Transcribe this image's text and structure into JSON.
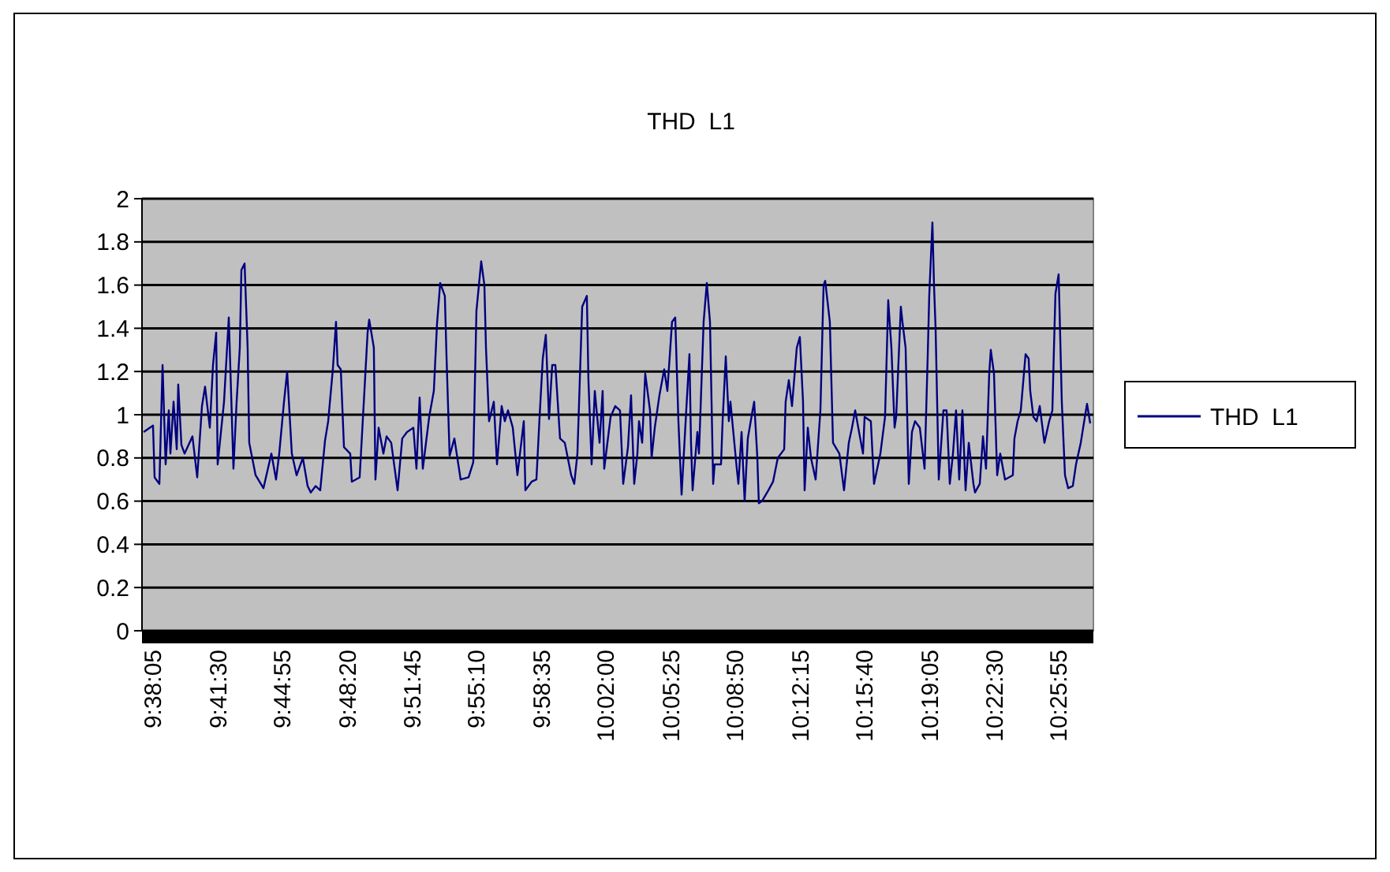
{
  "chart_data": {
    "type": "line",
    "title": "THD  L1",
    "legend": "right",
    "grid": "y",
    "xlim": [
      9.625,
      10.4625
    ],
    "xticks": [
      {
        "value": 9.634722,
        "label": "9:38:05"
      },
      {
        "value": 9.691667,
        "label": "9:41:30"
      },
      {
        "value": 9.748611,
        "label": "9:44:55"
      },
      {
        "value": 9.805556,
        "label": "9:48:20"
      },
      {
        "value": 9.8625,
        "label": "9:51:45"
      },
      {
        "value": 9.919444,
        "label": "9:55:10"
      },
      {
        "value": 9.976389,
        "label": "9:58:35"
      },
      {
        "value": 10.033333,
        "label": "10:02:00"
      },
      {
        "value": 10.090278,
        "label": "10:05:25"
      },
      {
        "value": 10.147222,
        "label": "10:08:50"
      },
      {
        "value": 10.204167,
        "label": "10:12:15"
      },
      {
        "value": 10.261111,
        "label": "10:15:40"
      },
      {
        "value": 10.318056,
        "label": "10:19:05"
      },
      {
        "value": 10.375,
        "label": "10:22:30"
      },
      {
        "value": 10.431944,
        "label": "10:25:55"
      }
    ],
    "ylim": [
      0,
      2
    ],
    "yticks": [
      0,
      0.2,
      0.4,
      0.6,
      0.8,
      1,
      1.2,
      1.4,
      1.6,
      1.8,
      2
    ],
    "series": [
      {
        "name": "THD  L1",
        "color": "#000080",
        "x": [
          9.6264,
          9.6347,
          9.6361,
          9.6403,
          9.6431,
          9.6458,
          9.6486,
          9.65,
          9.6528,
          9.6556,
          9.6569,
          9.6597,
          9.6625,
          9.6694,
          9.6736,
          9.6778,
          9.6805,
          9.6847,
          9.6875,
          9.6903,
          9.6916,
          9.6972,
          9.7014,
          9.7055,
          9.7083,
          9.7111,
          9.7125,
          9.7153,
          9.718,
          9.7194,
          9.725,
          9.7319,
          9.7389,
          9.743,
          9.7458,
          9.75,
          9.7528,
          9.7569,
          9.7611,
          9.7666,
          9.7708,
          9.7736,
          9.7778,
          9.7819,
          9.7861,
          9.7889,
          9.793,
          9.7958,
          9.7972,
          9.8,
          9.8028,
          9.8083,
          9.8097,
          9.8166,
          9.8208,
          9.8236,
          9.825,
          9.8291,
          9.8305,
          9.8333,
          9.8375,
          9.8403,
          9.8444,
          9.85,
          9.8541,
          9.8583,
          9.8639,
          9.8666,
          9.8694,
          9.8722,
          9.8778,
          9.8819,
          9.8847,
          9.8875,
          9.8916,
          9.893,
          9.8958,
          9.9,
          9.9055,
          9.9125,
          9.9166,
          9.9194,
          9.9236,
          9.9264,
          9.9278,
          9.9305,
          9.9347,
          9.9375,
          9.9416,
          9.9444,
          9.9472,
          9.9514,
          9.9555,
          9.9611,
          9.9625,
          9.968,
          9.9722,
          9.975,
          9.9778,
          9.9805,
          9.9833,
          9.9861,
          9.9889,
          9.993,
          9.9972,
          10.0028,
          10.0055,
          10.0083,
          10.0125,
          10.0166,
          10.018,
          10.0208,
          10.0236,
          10.0278,
          10.0305,
          10.0319,
          10.0375,
          10.0416,
          10.0458,
          10.0486,
          10.0528,
          10.0555,
          10.0583,
          10.0611,
          10.0625,
          10.0653,
          10.068,
          10.0722,
          10.0736,
          10.0764,
          10.0805,
          10.0847,
          10.0875,
          10.0916,
          10.0944,
          10.0972,
          10.1,
          10.1041,
          10.1069,
          10.1083,
          10.1097,
          10.1139,
          10.1153,
          10.1194,
          10.1222,
          10.125,
          10.1278,
          10.1291,
          10.1347,
          10.1361,
          10.1389,
          10.1416,
          10.143,
          10.1486,
          10.15,
          10.1528,
          10.1555,
          10.1583,
          10.1625,
          10.1639,
          10.1666,
          10.168,
          10.1708,
          10.1764,
          10.1805,
          10.1847,
          10.1903,
          10.1916,
          10.1944,
          10.1972,
          10.2014,
          10.2041,
          10.2069,
          10.2083,
          10.2111,
          10.2139,
          10.218,
          10.2222,
          10.225,
          10.2264,
          10.2305,
          10.2333,
          10.2389,
          10.243,
          10.2472,
          10.25,
          10.2528,
          10.2569,
          10.2597,
          10.2611,
          10.2666,
          10.2694,
          10.275,
          10.2791,
          10.2819,
          10.2847,
          10.2875,
          10.2889,
          10.293,
          10.2944,
          10.2972,
          10.3,
          10.3028,
          10.3055,
          10.3097,
          10.3139,
          10.3166,
          10.318,
          10.3208,
          10.3222,
          10.3236,
          10.3264,
          10.3305,
          10.3333,
          10.3361,
          10.3389,
          10.3416,
          10.3444,
          10.3472,
          10.35,
          10.3528,
          10.3569,
          10.3583,
          10.3625,
          10.3653,
          10.368,
          10.3708,
          10.3722,
          10.375,
          10.3778,
          10.3805,
          10.3847,
          10.3916,
          10.393,
          10.3958,
          10.3986,
          10.4028,
          10.4055,
          10.4069,
          10.4097,
          10.4125,
          10.4153,
          10.4194,
          10.4236,
          10.4264,
          10.4278,
          10.4291,
          10.4319,
          10.4333,
          10.4347,
          10.4375,
          10.4403,
          10.4444,
          10.4472,
          10.4514,
          10.4541,
          10.4569,
          10.4597
        ],
        "values": [
          0.92,
          0.95,
          0.71,
          0.68,
          1.23,
          0.77,
          1.02,
          0.82,
          1.06,
          0.84,
          1.14,
          0.86,
          0.82,
          0.9,
          0.71,
          1.04,
          1.13,
          0.94,
          1.23,
          1.38,
          0.77,
          1.06,
          1.45,
          0.75,
          1.06,
          1.31,
          1.67,
          1.7,
          1.31,
          0.87,
          0.72,
          0.66,
          0.82,
          0.7,
          0.82,
          1.06,
          1.2,
          0.82,
          0.72,
          0.8,
          0.67,
          0.64,
          0.67,
          0.65,
          0.88,
          0.97,
          1.21,
          1.43,
          1.23,
          1.21,
          0.85,
          0.82,
          0.69,
          0.71,
          1.11,
          1.38,
          1.44,
          1.31,
          0.7,
          0.94,
          0.82,
          0.9,
          0.87,
          0.65,
          0.89,
          0.92,
          0.94,
          0.75,
          1.08,
          0.75,
          0.99,
          1.11,
          1.42,
          1.61,
          1.55,
          1.28,
          0.81,
          0.89,
          0.7,
          0.71,
          0.78,
          1.48,
          1.71,
          1.6,
          1.31,
          0.97,
          1.06,
          0.77,
          1.04,
          0.97,
          1.02,
          0.94,
          0.72,
          0.97,
          0.65,
          0.69,
          0.7,
          0.99,
          1.26,
          1.37,
          0.98,
          1.23,
          1.23,
          0.89,
          0.87,
          0.72,
          0.68,
          0.82,
          1.5,
          1.55,
          1.16,
          0.77,
          1.11,
          0.87,
          1.11,
          0.75,
          0.99,
          1.04,
          1.02,
          0.68,
          0.85,
          1.09,
          0.68,
          0.82,
          0.97,
          0.87,
          1.19,
          1.02,
          0.8,
          0.94,
          1.09,
          1.21,
          1.11,
          1.43,
          1.45,
          0.97,
          0.63,
          1.02,
          1.28,
          0.87,
          0.65,
          0.92,
          0.82,
          1.43,
          1.61,
          1.43,
          0.68,
          0.77,
          0.77,
          0.97,
          1.27,
          0.97,
          1.06,
          0.75,
          0.68,
          0.92,
          0.6,
          0.89,
          1.02,
          1.06,
          0.81,
          0.59,
          0.6,
          0.65,
          0.69,
          0.8,
          0.84,
          1.06,
          1.16,
          1.04,
          1.31,
          1.36,
          1.06,
          0.65,
          0.94,
          0.8,
          0.7,
          1.02,
          1.6,
          1.62,
          1.43,
          0.87,
          0.82,
          0.65,
          0.87,
          0.94,
          1.02,
          0.9,
          0.82,
          0.99,
          0.97,
          0.68,
          0.82,
          0.99,
          1.53,
          1.31,
          0.94,
          0.99,
          1.5,
          1.43,
          1.31,
          0.68,
          0.92,
          0.97,
          0.94,
          0.75,
          1.26,
          1.55,
          1.89,
          1.6,
          1.4,
          0.7,
          1.02,
          1.02,
          0.68,
          0.82,
          1.02,
          0.7,
          1.02,
          0.65,
          0.87,
          0.68,
          0.64,
          0.68,
          0.9,
          0.75,
          1.19,
          1.3,
          1.19,
          0.72,
          0.82,
          0.7,
          0.72,
          0.89,
          0.97,
          1.02,
          1.28,
          1.26,
          1.11,
          0.99,
          0.97,
          1.04,
          0.87,
          0.97,
          1.02,
          1.31,
          1.56,
          1.65,
          1.36,
          1.06,
          0.72,
          0.66,
          0.67,
          0.77,
          0.87,
          0.96,
          1.05,
          0.96
        ]
      }
    ]
  }
}
